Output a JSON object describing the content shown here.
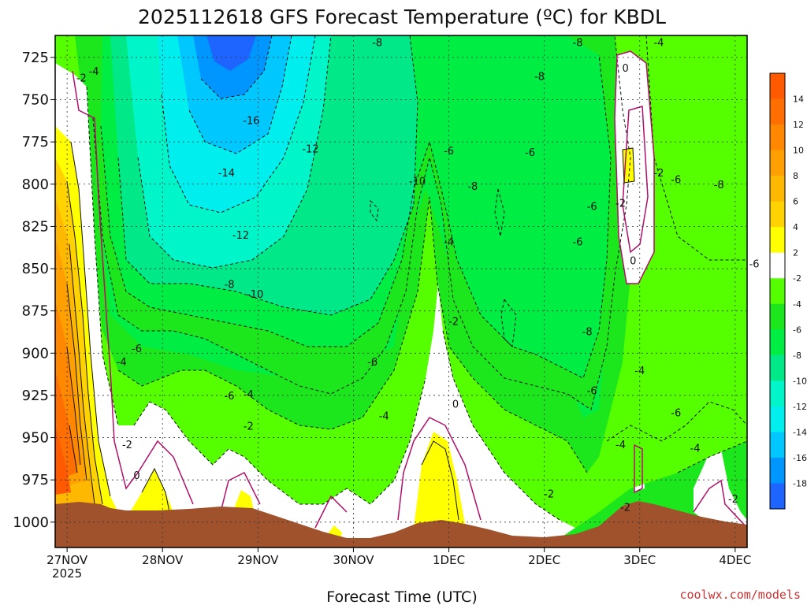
{
  "chart_data": {
    "type": "contour",
    "title": "2025112618 GFS Forecast Temperature (ºC) for KBDL",
    "xlabel": "Forecast Time (UTC)",
    "ylabel": "",
    "credit": "coolwx.com/models",
    "y_axis": {
      "unit": "hPa",
      "reversed": true,
      "ylim": [
        1015,
        712
      ],
      "ticks": [
        "725",
        "750",
        "775",
        "800",
        "825",
        "850",
        "875",
        "900",
        "925",
        "950",
        "975",
        "1000"
      ]
    },
    "x_axis": {
      "xlim": [
        -0.125,
        7.125
      ],
      "ticks": [
        {
          "label": "27NOV",
          "sub": "2025",
          "t": 0
        },
        {
          "label": "28NOV",
          "sub": "",
          "t": 1
        },
        {
          "label": "29NOV",
          "sub": "",
          "t": 2
        },
        {
          "label": "30NOV",
          "sub": "",
          "t": 3
        },
        {
          "label": "1DEC",
          "sub": "",
          "t": 4
        },
        {
          "label": "2DEC",
          "sub": "",
          "t": 5
        },
        {
          "label": "3DEC",
          "sub": "",
          "t": 6
        },
        {
          "label": "4DEC",
          "sub": "",
          "t": 7
        }
      ]
    },
    "grid": true,
    "colorbar": {
      "placement": "right",
      "labels": [
        "14",
        "12",
        "10",
        "8",
        "6",
        "4",
        "2",
        "-2",
        "-4",
        "-6",
        "-8",
        "-10",
        "-12",
        "-14",
        "-16",
        "-18"
      ],
      "colors": [
        "#ff5a00",
        "#ff6e00",
        "#ff8800",
        "#ffa000",
        "#ffb800",
        "#ffd200",
        "#ffff00",
        "#ffffff",
        "#55ff00",
        "#1ce71c",
        "#00ee44",
        "#00e887",
        "#00f5c8",
        "#00eeee",
        "#00c8ff",
        "#0096ff",
        "#1e64ff"
      ]
    },
    "contour_labels": [
      {
        "text": "-2",
        "t": 0.15,
        "p": 737
      },
      {
        "text": "-4",
        "t": 0.28,
        "p": 733
      },
      {
        "text": "-8",
        "t": 3.25,
        "p": 716
      },
      {
        "text": "-8",
        "t": 5.35,
        "p": 716
      },
      {
        "text": "-4",
        "t": 6.2,
        "p": 716
      },
      {
        "text": "-8",
        "t": 4.95,
        "p": 736
      },
      {
        "text": "0",
        "t": 5.85,
        "p": 731
      },
      {
        "text": "-16",
        "t": 1.93,
        "p": 762
      },
      {
        "text": "-12",
        "t": 2.55,
        "p": 779
      },
      {
        "text": "-6",
        "t": 4.0,
        "p": 780
      },
      {
        "text": "-6",
        "t": 4.85,
        "p": 781
      },
      {
        "text": "-14",
        "t": 1.67,
        "p": 793
      },
      {
        "text": "-10",
        "t": 3.67,
        "p": 798
      },
      {
        "text": "-8",
        "t": 4.25,
        "p": 801
      },
      {
        "text": "-2",
        "t": 6.2,
        "p": 793
      },
      {
        "text": "-6",
        "t": 6.38,
        "p": 797
      },
      {
        "text": "-8",
        "t": 6.83,
        "p": 800
      },
      {
        "text": "-2",
        "t": 5.8,
        "p": 811
      },
      {
        "text": "-6",
        "t": 5.5,
        "p": 813
      },
      {
        "text": "-12",
        "t": 1.82,
        "p": 830
      },
      {
        "text": "-4",
        "t": 4.0,
        "p": 834
      },
      {
        "text": "-6",
        "t": 5.35,
        "p": 834
      },
      {
        "text": "0",
        "t": 5.93,
        "p": 845
      },
      {
        "text": "-6",
        "t": 7.2,
        "p": 847
      },
      {
        "text": "-8",
        "t": 1.7,
        "p": 859
      },
      {
        "text": "-10",
        "t": 1.97,
        "p": 865
      },
      {
        "text": "-2",
        "t": 4.05,
        "p": 881
      },
      {
        "text": "-8",
        "t": 5.45,
        "p": 887
      },
      {
        "text": "-6",
        "t": 0.73,
        "p": 897
      },
      {
        "text": "-4",
        "t": 0.57,
        "p": 905
      },
      {
        "text": "-6",
        "t": 3.2,
        "p": 905
      },
      {
        "text": "-4",
        "t": 6.0,
        "p": 910
      },
      {
        "text": "-6",
        "t": 5.5,
        "p": 922
      },
      {
        "text": "-6",
        "t": 1.7,
        "p": 925
      },
      {
        "text": "-4",
        "t": 1.9,
        "p": 924
      },
      {
        "text": "0",
        "t": 4.07,
        "p": 930
      },
      {
        "text": "-4",
        "t": 3.32,
        "p": 937
      },
      {
        "text": "-6",
        "t": 6.38,
        "p": 935
      },
      {
        "text": "-2",
        "t": 1.9,
        "p": 943
      },
      {
        "text": "-2",
        "t": 0.63,
        "p": 954
      },
      {
        "text": "-4",
        "t": 5.8,
        "p": 954
      },
      {
        "text": "-4",
        "t": 6.58,
        "p": 956
      },
      {
        "text": "0",
        "t": 0.73,
        "p": 972
      },
      {
        "text": "-2",
        "t": 5.05,
        "p": 983
      },
      {
        "text": "-2",
        "t": 6.98,
        "p": 986
      },
      {
        "text": "-2",
        "t": 5.85,
        "p": 991
      }
    ]
  }
}
